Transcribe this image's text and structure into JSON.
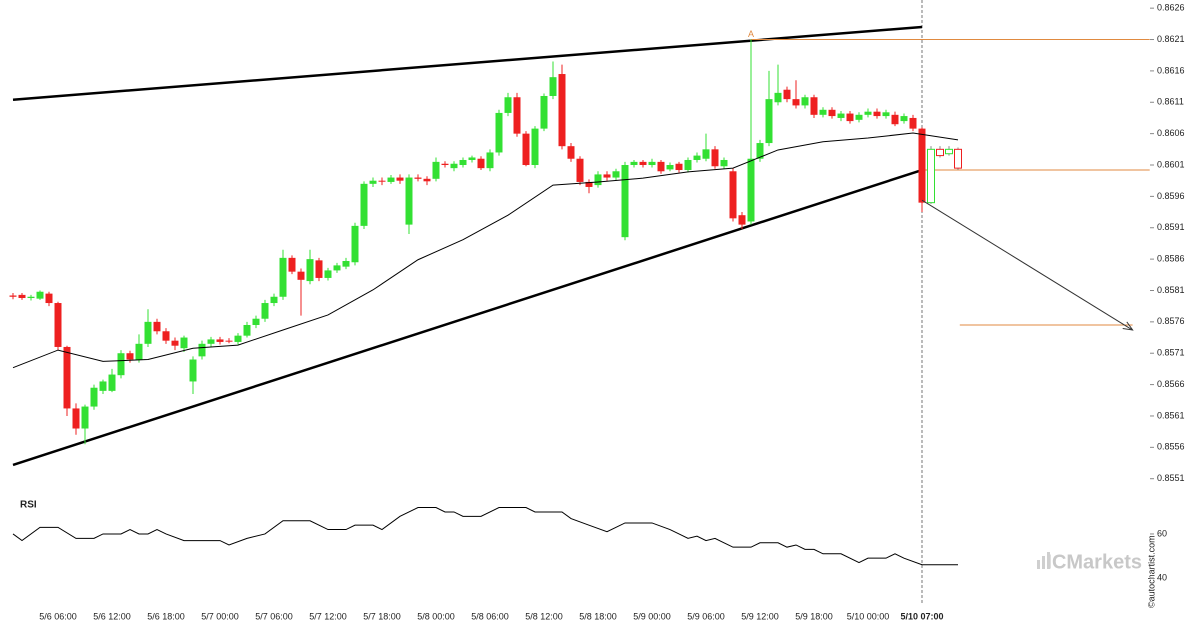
{
  "chart_data": {
    "type": "candlestick",
    "up_color": "#33e033",
    "down_color": "#ee2020",
    "hollow_last": 4,
    "current_index": 101,
    "categories": [
      null,
      null,
      null,
      null,
      null,
      "5/6 06:00",
      null,
      null,
      null,
      null,
      null,
      "5/6 12:00",
      null,
      null,
      null,
      null,
      null,
      "5/6 18:00",
      null,
      null,
      null,
      null,
      null,
      "5/7 00:00",
      null,
      null,
      null,
      null,
      null,
      "5/7 06:00",
      null,
      null,
      null,
      null,
      null,
      "5/7 12:00",
      null,
      null,
      null,
      null,
      null,
      "5/7 18:00",
      null,
      null,
      null,
      null,
      null,
      "5/8 00:00",
      null,
      null,
      null,
      null,
      null,
      "5/8 06:00",
      null,
      null,
      null,
      null,
      null,
      "5/8 12:00",
      null,
      null,
      null,
      null,
      null,
      "5/8 18:00",
      null,
      null,
      null,
      null,
      null,
      "5/9 00:00",
      null,
      null,
      null,
      null,
      null,
      "5/9 06:00",
      null,
      null,
      null,
      null,
      null,
      "5/9 12:00",
      null,
      null,
      null,
      null,
      null,
      "5/9 18:00",
      null,
      null,
      null,
      null,
      null,
      "5/10 00:00",
      null,
      null,
      null,
      null,
      null,
      "5/10 07:00",
      null,
      null,
      null,
      null
    ],
    "open": [
      0.85802,
      0.85803,
      0.85798,
      0.85797,
      0.85805,
      0.8579,
      0.8572,
      0.85622,
      0.8559,
      0.85625,
      0.8565,
      0.8565,
      0.85675,
      0.8571,
      0.857,
      0.85725,
      0.8576,
      0.85745,
      0.8573,
      0.85718,
      0.85665,
      0.85705,
      0.85725,
      0.85732,
      0.8573,
      0.85728,
      0.85738,
      0.85755,
      0.85765,
      0.8579,
      0.858,
      0.85862,
      0.8584,
      0.85825,
      0.85858,
      0.8583,
      0.85842,
      0.85848,
      0.85855,
      0.85913,
      0.8598,
      0.85985,
      0.85983,
      0.8599,
      0.85915,
      0.8599,
      0.85988,
      0.85988,
      0.86012,
      0.86005,
      0.8601,
      0.86018,
      0.8602,
      0.86005,
      0.8603,
      0.86093,
      0.86118,
      0.8606,
      0.8601,
      0.86068,
      0.8612,
      0.86155,
      0.8604,
      0.8602,
      0.85983,
      0.85978,
      0.85995,
      0.8599,
      0.85895,
      0.8601,
      0.86015,
      0.8601,
      0.86015,
      0.86003,
      0.86012,
      0.86002,
      0.86018,
      0.8602,
      0.86035,
      0.86008,
      0.86,
      0.8593,
      0.8592,
      0.8602,
      0.86045,
      0.8611,
      0.8613,
      0.86115,
      0.86105,
      0.86118,
      0.8609,
      0.86098,
      0.86085,
      0.86092,
      0.86082,
      0.8609,
      0.86095,
      0.86088,
      0.8609,
      0.8608,
      0.86085,
      0.86068,
      0.8595,
      0.86035,
      0.86028,
      0.86035
    ],
    "high": [
      0.85806,
      0.85806,
      0.85803,
      0.8581,
      0.85808,
      0.85792,
      0.85722,
      0.8563,
      0.85628,
      0.8566,
      0.85668,
      0.85685,
      0.85715,
      0.85714,
      0.8574,
      0.8578,
      0.85765,
      0.8575,
      0.85735,
      0.85738,
      0.85705,
      0.8573,
      0.85736,
      0.85736,
      0.85734,
      0.85742,
      0.8576,
      0.8577,
      0.85795,
      0.85805,
      0.85875,
      0.85866,
      0.85845,
      0.85875,
      0.85862,
      0.85846,
      0.85854,
      0.85862,
      0.85918,
      0.85984,
      0.8599,
      0.8599,
      0.85994,
      0.85995,
      0.85995,
      0.85995,
      0.85992,
      0.86022,
      0.86016,
      0.86016,
      0.86022,
      0.86025,
      0.86024,
      0.86035,
      0.86098,
      0.86125,
      0.86125,
      0.86064,
      0.86072,
      0.86124,
      0.86175,
      0.8617,
      0.86045,
      0.86024,
      0.85987,
      0.86,
      0.86,
      0.86004,
      0.86015,
      0.86018,
      0.86018,
      0.8602,
      0.86018,
      0.86014,
      0.86015,
      0.86022,
      0.8603,
      0.8606,
      0.8604,
      0.86022,
      0.86005,
      0.85935,
      0.8621,
      0.8605,
      0.8616,
      0.8617,
      0.86135,
      0.86145,
      0.86122,
      0.86122,
      0.86102,
      0.86102,
      0.86096,
      0.86096,
      0.86094,
      0.861,
      0.861,
      0.86098,
      0.86095,
      0.86092,
      0.8609,
      0.8607,
      0.8604,
      0.8604,
      0.8604,
      0.86038
    ],
    "low": [
      0.85796,
      0.85795,
      0.85794,
      0.85795,
      0.85785,
      0.85715,
      0.8561,
      0.8558,
      0.85565,
      0.8562,
      0.85645,
      0.85648,
      0.8567,
      0.85695,
      0.85695,
      0.8572,
      0.8574,
      0.85725,
      0.85715,
      0.85712,
      0.85645,
      0.857,
      0.8572,
      0.85724,
      0.85726,
      0.85724,
      0.85735,
      0.8575,
      0.8576,
      0.85785,
      0.85795,
      0.85836,
      0.8577,
      0.8582,
      0.85825,
      0.85826,
      0.85838,
      0.85844,
      0.8585,
      0.85908,
      0.85975,
      0.85978,
      0.8598,
      0.8598,
      0.859,
      0.85984,
      0.85978,
      0.85984,
      0.86006,
      0.86,
      0.86006,
      0.86014,
      0.86002,
      0.86,
      0.86025,
      0.86088,
      0.86055,
      0.86008,
      0.86005,
      0.86064,
      0.86115,
      0.86035,
      0.86015,
      0.85978,
      0.85965,
      0.85974,
      0.85985,
      0.85986,
      0.8589,
      0.86006,
      0.86006,
      0.86006,
      0.85996,
      0.86,
      0.85998,
      0.85998,
      0.86014,
      0.86016,
      0.86004,
      0.86004,
      0.8592,
      0.85908,
      0.85915,
      0.86015,
      0.8604,
      0.86105,
      0.8611,
      0.861,
      0.861,
      0.86085,
      0.86086,
      0.86084,
      0.8608,
      0.86076,
      0.86078,
      0.86086,
      0.86084,
      0.86084,
      0.86072,
      0.86076,
      0.86064,
      0.85935,
      0.85948,
      0.86022,
      0.86025,
      0.86002
    ],
    "close": [
      0.858,
      0.85798,
      0.858,
      0.85808,
      0.8579,
      0.8572,
      0.85622,
      0.8559,
      0.85625,
      0.85655,
      0.85665,
      0.85676,
      0.8571,
      0.857,
      0.85725,
      0.8576,
      0.85745,
      0.8573,
      0.85722,
      0.85735,
      0.857,
      0.85725,
      0.85732,
      0.85728,
      0.85729,
      0.85738,
      0.85755,
      0.85765,
      0.8579,
      0.858,
      0.85862,
      0.8584,
      0.85827,
      0.8586,
      0.8583,
      0.85842,
      0.8585,
      0.85857,
      0.85913,
      0.8598,
      0.85985,
      0.85984,
      0.8599,
      0.85985,
      0.8599,
      0.85988,
      0.85984,
      0.86015,
      0.8601,
      0.86012,
      0.86018,
      0.86022,
      0.86005,
      0.8603,
      0.86093,
      0.86118,
      0.8606,
      0.8601,
      0.86068,
      0.8612,
      0.8615,
      0.8604,
      0.8602,
      0.85983,
      0.85975,
      0.85995,
      0.8599,
      0.86,
      0.8601,
      0.86015,
      0.8601,
      0.86015,
      0.86,
      0.8601,
      0.86002,
      0.86018,
      0.86025,
      0.86035,
      0.86008,
      0.86018,
      0.85925,
      0.85915,
      0.8602,
      0.86045,
      0.86115,
      0.86125,
      0.86115,
      0.86105,
      0.86118,
      0.8609,
      0.86098,
      0.86088,
      0.86092,
      0.8608,
      0.8609,
      0.86095,
      0.86088,
      0.86094,
      0.86075,
      0.86088,
      0.86068,
      0.8595,
      0.86035,
      0.86025,
      0.86035,
      0.86005
    ],
    "ylim": [
      0.85492,
      0.86273
    ],
    "yticks": [
      0.8626,
      0.8621,
      0.8616,
      0.8611,
      0.8606,
      0.8601,
      0.8596,
      0.8591,
      0.8586,
      0.8581,
      0.8576,
      0.8571,
      0.8566,
      0.8561,
      0.8556,
      0.8551
    ],
    "moving_average": {
      "color": "#000000",
      "x": [
        0,
        5,
        10,
        15,
        20,
        25,
        30,
        35,
        40,
        45,
        50,
        55,
        60,
        65,
        70,
        75,
        80,
        85,
        90,
        95,
        100,
        105
      ],
      "values": [
        0.85687,
        0.85715,
        0.85697,
        0.857,
        0.85718,
        0.85723,
        0.85747,
        0.85771,
        0.85811,
        0.85859,
        0.85891,
        0.8593,
        0.85978,
        0.85983,
        0.85989,
        0.85999,
        0.86005,
        0.86034,
        0.86047,
        0.86053,
        0.86061,
        0.8605
      ]
    },
    "pattern_lines": [
      {
        "x": [
          0,
          101
        ],
        "values": [
          0.86114,
          0.8623
        ]
      },
      {
        "x": [
          0,
          101
        ],
        "values": [
          0.85532,
          0.86002
        ]
      }
    ],
    "levels": [
      {
        "x": [
          82,
          126.3
        ],
        "value": 0.8621
      },
      {
        "x": [
          101,
          126.3
        ],
        "value": 0.86002
      },
      {
        "x": [
          105.2,
          124.4
        ],
        "value": 0.85755
      }
    ],
    "forecast": {
      "x": [
        101,
        124.4
      ],
      "values": [
        0.85954,
        0.85747
      ]
    },
    "annotation": {
      "text": "A",
      "x": 82,
      "value": 0.8621
    },
    "rsi": {
      "label": "RSI",
      "ylim": [
        30,
        77.7
      ],
      "yticks": [
        60,
        40
      ],
      "x": [
        0,
        1,
        3,
        5,
        7,
        9,
        10,
        12,
        13,
        14,
        15,
        16,
        17,
        19,
        23,
        24,
        26,
        28,
        30,
        33,
        35,
        37,
        38,
        40,
        41,
        43,
        45,
        47,
        48,
        49,
        50,
        52,
        54,
        57,
        58,
        61,
        62,
        64,
        66,
        68,
        71,
        73,
        74,
        75,
        76,
        77,
        78,
        79,
        80,
        82,
        83,
        85,
        86,
        87,
        88,
        89,
        90,
        92,
        94,
        95,
        97,
        98,
        99,
        101,
        105
      ],
      "values": [
        60,
        57,
        63,
        63,
        58,
        58,
        60,
        60,
        62,
        60,
        60,
        62,
        60,
        57,
        57,
        55,
        58,
        60,
        66,
        66,
        62,
        62,
        64,
        64,
        62,
        68,
        72,
        72,
        70,
        70,
        68,
        68,
        72,
        72,
        70,
        70,
        67,
        64,
        61,
        65,
        65,
        62,
        60,
        58,
        59,
        57,
        58,
        56,
        54,
        54,
        56,
        56,
        54,
        55,
        53,
        53,
        51,
        51,
        47,
        49,
        49,
        51,
        49,
        46,
        46
      ]
    },
    "watermark": "ICMarkets",
    "credit": "©autochartist.com"
  }
}
